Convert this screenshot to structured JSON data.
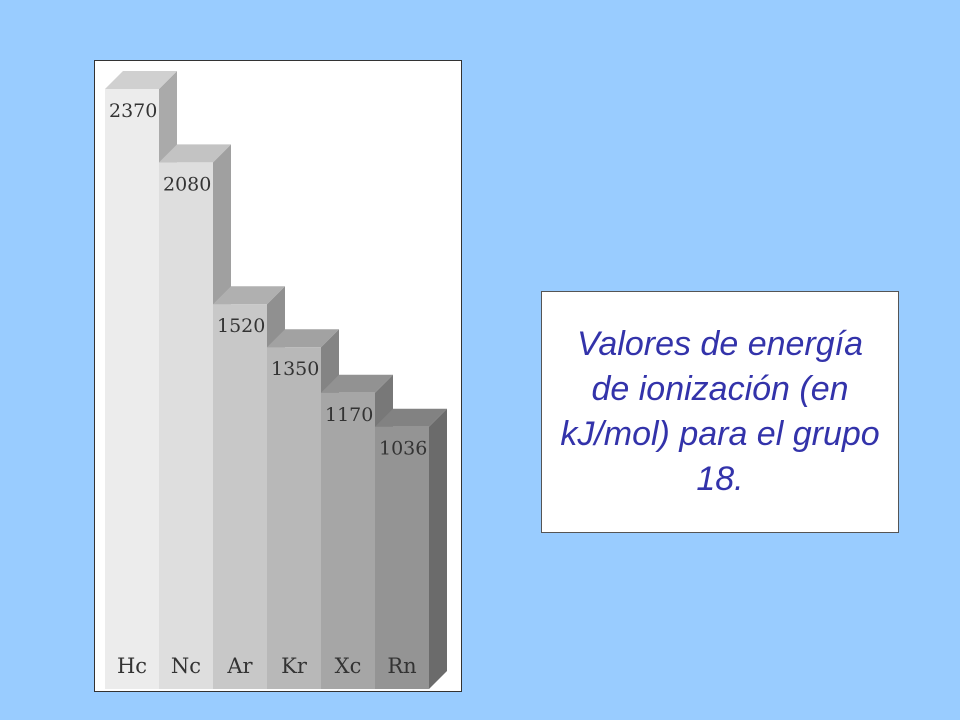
{
  "caption": "Valores de energía de ionización (en kJ/mol) para el grupo 18.",
  "colors": {
    "background": "#99ccff",
    "caption_text": "#3333aa",
    "bar_fronts": [
      "#ececec",
      "#dedede",
      "#c8c8c8",
      "#b8b8b8",
      "#a6a6a6",
      "#949494"
    ]
  },
  "chart_data": {
    "type": "bar",
    "style": "3d-stepped",
    "categories": [
      "He",
      "Ne",
      "Ar",
      "Kr",
      "Xe",
      "Rn"
    ],
    "category_labels": [
      "Hc",
      "Nc",
      "Ar",
      "Kr",
      "Xc",
      "Rn"
    ],
    "values": [
      2370,
      2080,
      1520,
      1350,
      1170,
      1036
    ],
    "value_labels": [
      "2370",
      "2080",
      "1520",
      "1350",
      "1170",
      "1036"
    ],
    "title": "",
    "xlabel": "",
    "ylabel": "",
    "grid": false
  }
}
